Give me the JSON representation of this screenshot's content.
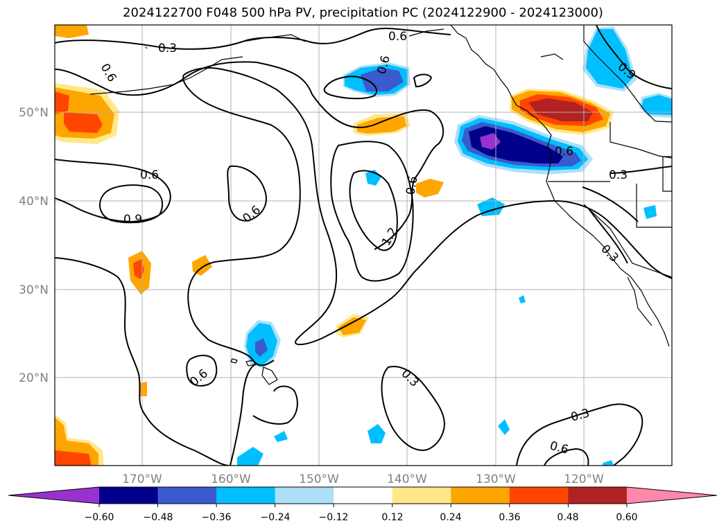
{
  "title": "2024122700 F048 500 hPa PV, precipitation PC (2024122900 - 2024123000)",
  "map": {
    "lat_labels": [
      "50°N",
      "40°N",
      "30°N",
      "20°N"
    ],
    "lon_labels": [
      "170°W",
      "160°W",
      "150°W",
      "140°W",
      "130°W",
      "120°W"
    ],
    "gridlines": true,
    "contour_labels": [
      "0.3",
      "0.6",
      "0.6",
      "0.6",
      "0.9",
      "0.6",
      "0.6",
      "0.9",
      "1.2",
      "0.6",
      "0.6",
      "0.3",
      "0.6",
      "0.3",
      "0.3",
      "0.6"
    ],
    "colors": {
      "grid": "#b0b0b0",
      "tick_label": "#808080",
      "contour": "#000000"
    }
  },
  "colorbar": {
    "tick_labels": [
      "−0.60",
      "−0.48",
      "−0.36",
      "−0.24",
      "−0.12",
      "0.12",
      "0.24",
      "0.36",
      "0.48",
      "0.60"
    ],
    "colors": [
      "#9932CC",
      "#00008B",
      "#3A5BCC",
      "#00BFFF",
      "#ADE0F8",
      "#FFFFFF",
      "#FFE88A",
      "#FFA500",
      "#FF4500",
      "#B22222",
      "#FF88AA"
    ]
  }
}
